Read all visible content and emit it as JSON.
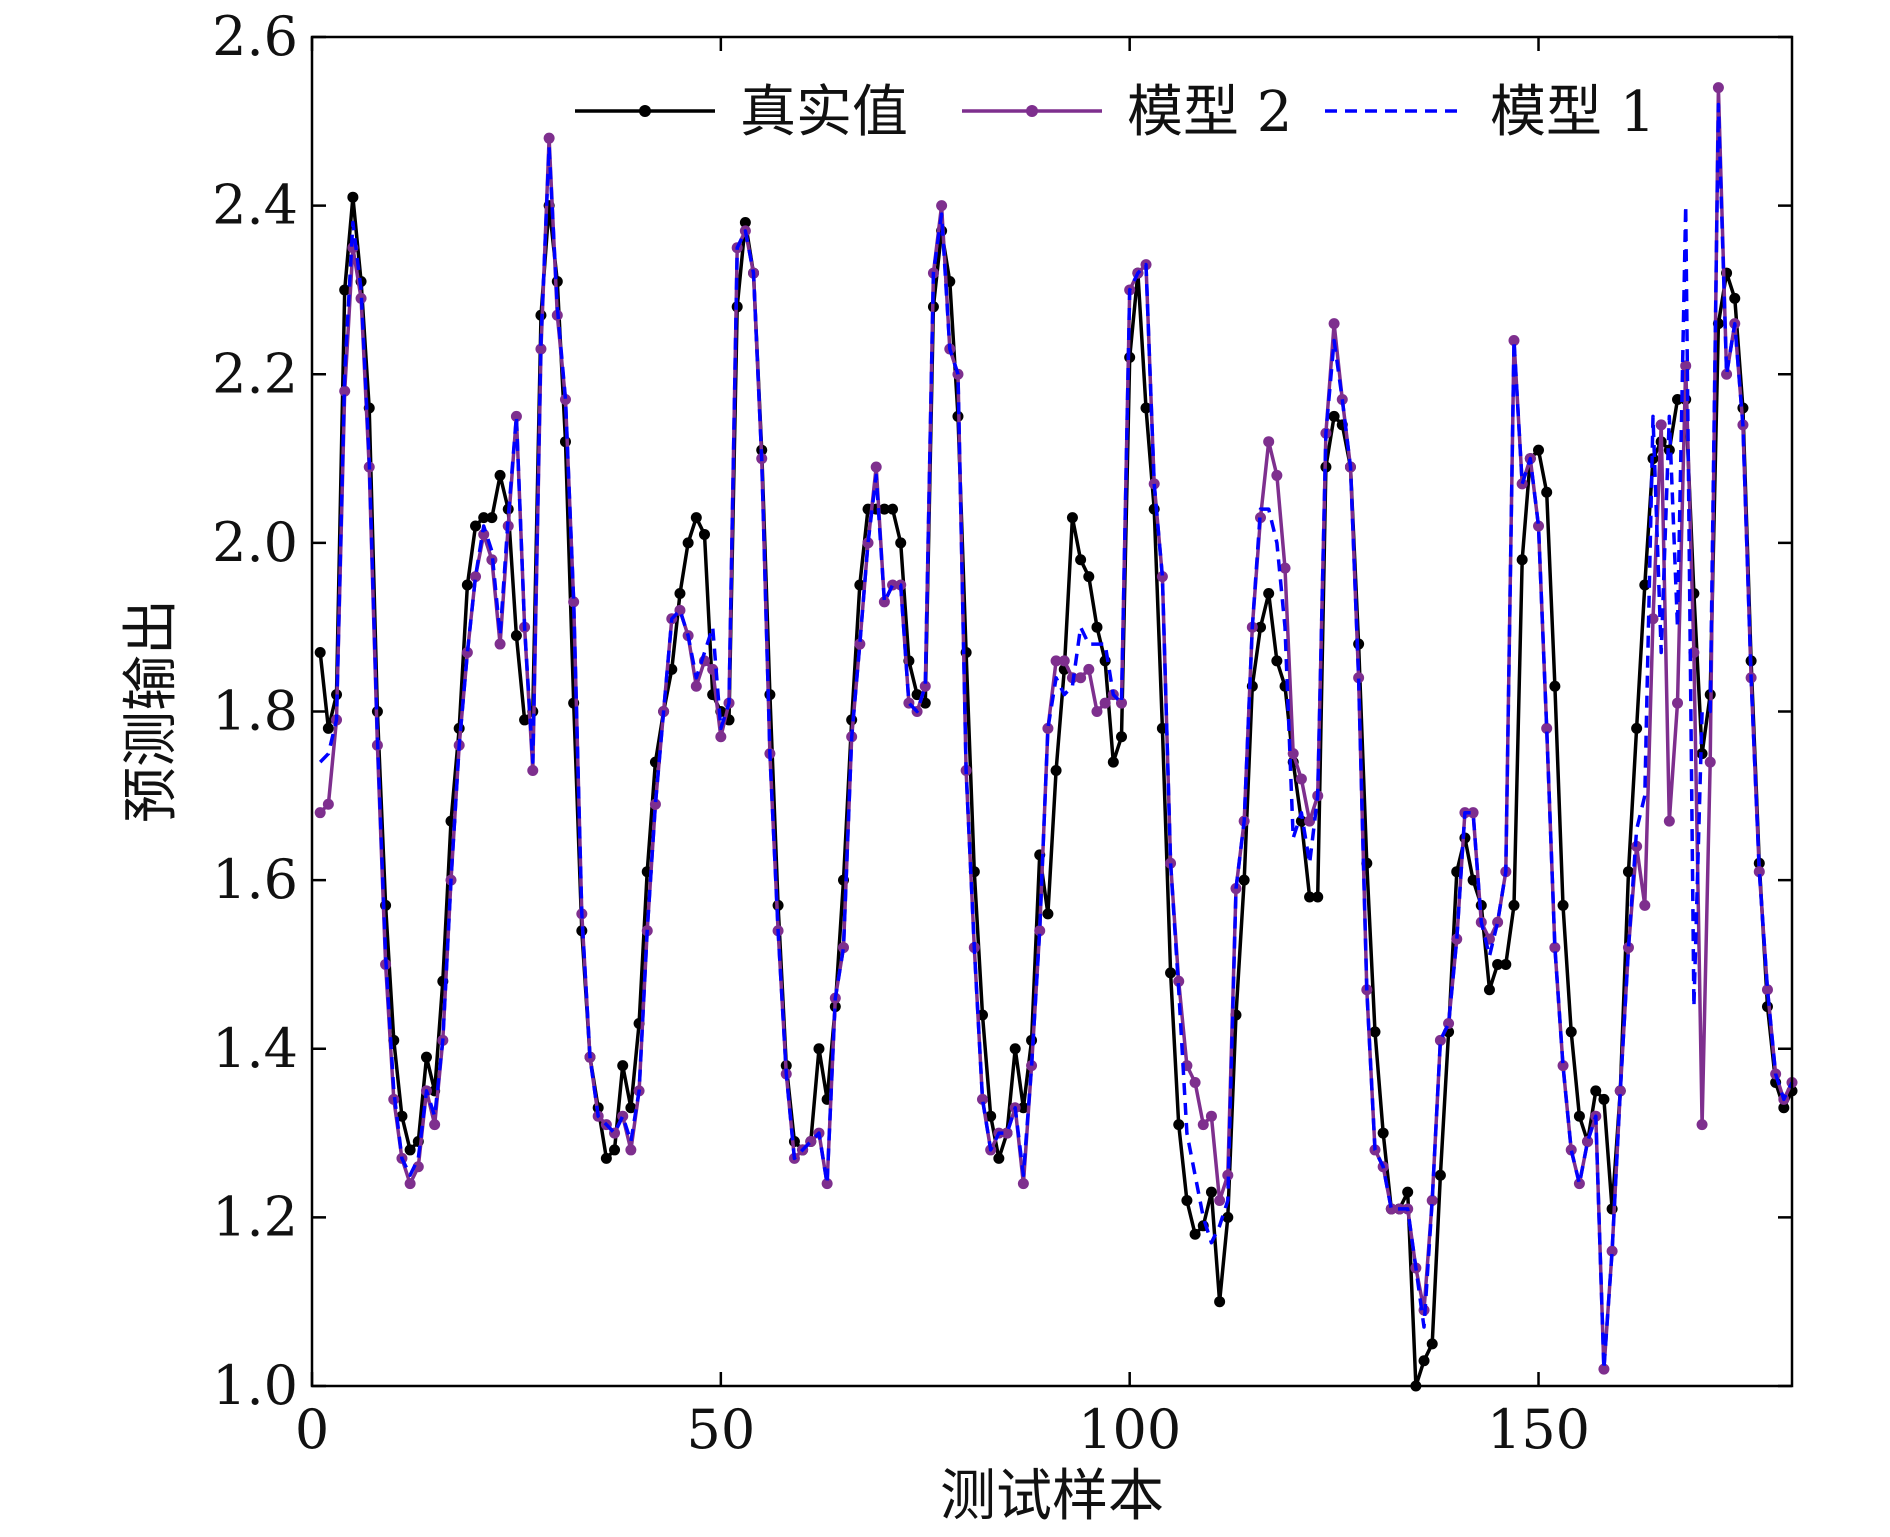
{
  "chart_data": {
    "type": "line",
    "title": "",
    "xlabel": "测试样本",
    "ylabel": "预测输出",
    "xlim": [
      0,
      181
    ],
    "ylim": [
      1.0,
      2.6
    ],
    "xticks": [
      "0",
      "50",
      "100",
      "150"
    ],
    "yticks": [
      "1.0",
      "1.2",
      "1.4",
      "1.6",
      "1.8",
      "2.0",
      "2.2",
      "2.4",
      "2.6"
    ],
    "grid": false,
    "legend_position": "top-right",
    "series": [
      {
        "name": "真实值",
        "color": "#000000",
        "style": "solid-marker",
        "values": [
          1.87,
          1.78,
          1.82,
          2.3,
          2.41,
          2.31,
          2.16,
          1.8,
          1.57,
          1.41,
          1.32,
          1.28,
          1.29,
          1.39,
          1.35,
          1.48,
          1.67,
          1.78,
          1.95,
          2.02,
          2.03,
          2.03,
          2.08,
          2.04,
          1.89,
          1.79,
          1.8,
          2.27,
          2.4,
          2.31,
          2.12,
          1.81,
          1.54,
          1.39,
          1.33,
          1.27,
          1.28,
          1.38,
          1.33,
          1.43,
          1.61,
          1.74,
          1.8,
          1.85,
          1.94,
          2.0,
          2.03,
          2.01,
          1.82,
          1.8,
          1.79,
          2.28,
          2.38,
          2.32,
          2.11,
          1.82,
          1.57,
          1.38,
          1.29,
          1.28,
          1.29,
          1.4,
          1.34,
          1.45,
          1.6,
          1.79,
          1.95,
          2.04,
          2.04,
          2.04,
          2.04,
          2.0,
          1.86,
          1.82,
          1.81,
          2.28,
          2.37,
          2.31,
          2.15,
          1.87,
          1.61,
          1.44,
          1.32,
          1.27,
          1.3,
          1.4,
          1.33,
          1.41,
          1.63,
          1.56,
          1.73,
          1.85,
          2.03,
          1.98,
          1.96,
          1.9,
          1.86,
          1.74,
          1.77,
          2.22,
          2.32,
          2.16,
          2.04,
          1.78,
          1.49,
          1.31,
          1.22,
          1.18,
          1.19,
          1.23,
          1.1,
          1.2,
          1.44,
          1.6,
          1.83,
          1.9,
          1.94,
          1.86,
          1.83,
          1.74,
          1.67,
          1.58,
          1.58,
          2.09,
          2.15,
          2.14,
          2.09,
          1.88,
          1.62,
          1.42,
          1.3,
          1.21,
          1.21,
          1.23,
          1.0,
          1.03,
          1.05,
          1.25,
          1.42,
          1.61,
          1.65,
          1.6,
          1.57,
          1.47,
          1.5,
          1.5,
          1.57,
          1.98,
          2.1,
          2.11,
          2.06,
          1.83,
          1.57,
          1.42,
          1.32,
          1.29,
          1.35,
          1.34,
          1.21,
          1.35,
          1.61,
          1.78,
          1.95,
          2.1,
          2.12,
          2.11,
          2.17,
          2.17,
          1.94,
          1.75,
          1.82,
          2.26,
          2.32,
          2.29,
          2.16,
          1.86,
          1.62,
          1.45,
          1.36,
          1.33,
          1.35
        ]
      },
      {
        "name": "模型 2",
        "color": "#7e2f8e",
        "style": "solid-marker",
        "values": [
          1.68,
          1.69,
          1.79,
          2.18,
          2.35,
          2.29,
          2.09,
          1.76,
          1.5,
          1.34,
          1.27,
          1.24,
          1.26,
          1.35,
          1.31,
          1.41,
          1.6,
          1.76,
          1.87,
          1.96,
          2.01,
          1.98,
          1.88,
          2.02,
          2.15,
          1.9,
          1.73,
          2.23,
          2.48,
          2.27,
          2.17,
          1.93,
          1.56,
          1.39,
          1.32,
          1.31,
          1.3,
          1.32,
          1.28,
          1.35,
          1.54,
          1.69,
          1.8,
          1.91,
          1.92,
          1.89,
          1.83,
          1.86,
          1.85,
          1.77,
          1.81,
          2.35,
          2.37,
          2.32,
          2.1,
          1.75,
          1.54,
          1.37,
          1.27,
          1.28,
          1.29,
          1.3,
          1.24,
          1.46,
          1.52,
          1.77,
          1.88,
          2.0,
          2.09,
          1.93,
          1.95,
          1.95,
          1.81,
          1.8,
          1.83,
          2.32,
          2.4,
          2.23,
          2.2,
          1.73,
          1.52,
          1.34,
          1.28,
          1.3,
          1.3,
          1.33,
          1.24,
          1.38,
          1.54,
          1.78,
          1.86,
          1.86,
          1.84,
          1.84,
          1.85,
          1.8,
          1.81,
          1.82,
          1.81,
          2.3,
          2.32,
          2.33,
          2.07,
          1.96,
          1.62,
          1.48,
          1.38,
          1.36,
          1.31,
          1.32,
          1.22,
          1.25,
          1.59,
          1.67,
          1.9,
          2.03,
          2.12,
          2.08,
          1.97,
          1.75,
          1.72,
          1.67,
          1.7,
          2.13,
          2.26,
          2.17,
          2.09,
          1.84,
          1.47,
          1.28,
          1.26,
          1.21,
          1.21,
          1.21,
          1.14,
          1.09,
          1.22,
          1.41,
          1.43,
          1.53,
          1.68,
          1.68,
          1.55,
          1.53,
          1.55,
          1.61,
          2.24,
          2.07,
          2.1,
          2.02,
          1.78,
          1.52,
          1.38,
          1.28,
          1.24,
          1.29,
          1.32,
          1.02,
          1.16,
          1.35,
          1.52,
          1.64,
          1.57,
          1.91,
          2.14,
          1.67,
          1.81,
          2.21,
          1.87,
          1.31,
          1.74,
          2.54,
          2.2,
          2.26,
          2.14,
          1.84,
          1.61,
          1.47,
          1.37,
          1.34,
          1.36
        ]
      },
      {
        "name": "模型 1",
        "color": "#0000ff",
        "style": "dashed",
        "values": [
          1.74,
          1.75,
          1.79,
          2.2,
          2.38,
          2.3,
          2.1,
          1.77,
          1.51,
          1.35,
          1.27,
          1.25,
          1.27,
          1.35,
          1.32,
          1.41,
          1.6,
          1.76,
          1.87,
          1.96,
          2.02,
          1.99,
          1.89,
          2.03,
          2.15,
          1.9,
          1.74,
          2.24,
          2.47,
          2.28,
          2.17,
          1.93,
          1.56,
          1.39,
          1.32,
          1.31,
          1.3,
          1.32,
          1.29,
          1.35,
          1.54,
          1.69,
          1.8,
          1.91,
          1.92,
          1.89,
          1.84,
          1.87,
          1.9,
          1.78,
          1.81,
          2.35,
          2.37,
          2.32,
          2.1,
          1.75,
          1.54,
          1.37,
          1.27,
          1.28,
          1.29,
          1.3,
          1.24,
          1.46,
          1.52,
          1.77,
          1.88,
          2.0,
          2.08,
          1.93,
          1.95,
          1.95,
          1.81,
          1.8,
          1.83,
          2.32,
          2.39,
          2.23,
          2.2,
          1.73,
          1.52,
          1.34,
          1.28,
          1.3,
          1.3,
          1.33,
          1.25,
          1.38,
          1.54,
          1.78,
          1.84,
          1.82,
          1.83,
          1.9,
          1.88,
          1.88,
          1.88,
          1.82,
          1.81,
          2.3,
          2.32,
          2.33,
          2.07,
          1.96,
          1.62,
          1.47,
          1.3,
          1.25,
          1.2,
          1.17,
          1.19,
          1.22,
          1.59,
          1.67,
          1.9,
          2.04,
          2.04,
          2.0,
          1.9,
          1.65,
          1.68,
          1.62,
          1.7,
          2.13,
          2.24,
          2.17,
          2.09,
          1.84,
          1.47,
          1.28,
          1.26,
          1.21,
          1.21,
          1.21,
          1.14,
          1.07,
          1.22,
          1.41,
          1.43,
          1.53,
          1.68,
          1.68,
          1.55,
          1.51,
          1.55,
          1.61,
          2.24,
          2.07,
          2.1,
          2.02,
          1.78,
          1.52,
          1.38,
          1.28,
          1.24,
          1.29,
          1.32,
          1.02,
          1.16,
          1.35,
          1.52,
          1.66,
          1.7,
          2.15,
          1.87,
          2.15,
          1.9,
          2.4,
          1.45,
          1.8,
          1.8,
          2.52,
          2.2,
          2.26,
          2.14,
          1.84,
          1.61,
          1.47,
          1.37,
          1.34,
          1.36
        ]
      }
    ]
  }
}
